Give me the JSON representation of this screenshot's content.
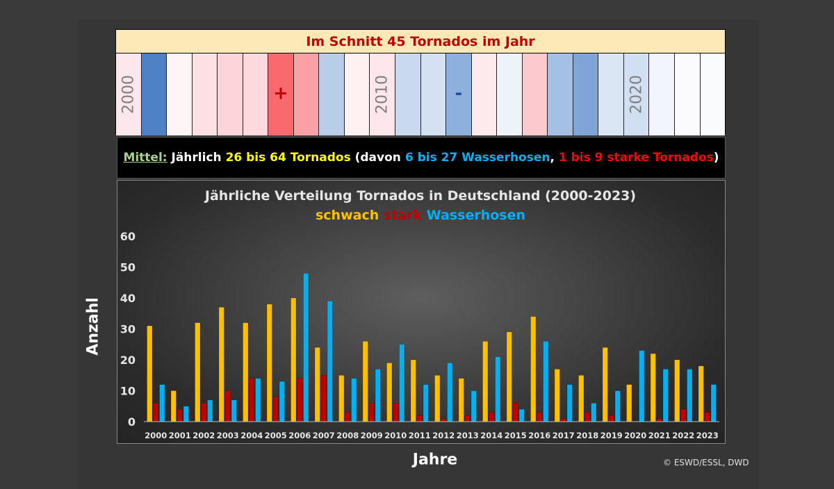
{
  "header": {
    "title": "Im Schnitt 45 Tornados im Jahr",
    "stripe_colors": [
      "#fce8ec",
      "#4f81c7",
      "#fff4f6",
      "#fde0e4",
      "#fcd4d9",
      "#fdd8dd",
      "#f96a6e",
      "#f9a1a5",
      "#b7cde8",
      "#fff0f2",
      "#fde7eb",
      "#c9d9ee",
      "#d4e1f2",
      "#8eb0dc",
      "#fdeaed",
      "#eef3fa",
      "#fcc9ce",
      "#a4c0e4",
      "#7fa4d6",
      "#dbe6f4",
      "#d0dff2",
      "#f2f5fb",
      "#fbfbfd",
      "#fafbfd"
    ],
    "stripe_years": [
      {
        "index": 0,
        "label": "2000"
      },
      {
        "index": 10,
        "label": "2010"
      },
      {
        "index": 20,
        "label": "2020"
      }
    ],
    "signs": [
      {
        "index": 6,
        "label": "+",
        "color": "#c00000"
      },
      {
        "index": 13,
        "label": "-",
        "color": "#2a4f9a"
      }
    ]
  },
  "mittel": {
    "label": "Mittel:",
    "p1": " Jährlich ",
    "range_total": "26 bis 64 Tornados",
    "p2": " (davon ",
    "range_water": "6 bis 27 Wasserhosen",
    "p3": ", ",
    "range_strong": "1 bis 9 starke Tornados",
    "p4": ")"
  },
  "chart_data": {
    "type": "bar",
    "title": "Jährliche Verteilung Tornados in Deutschland (2000-2023)",
    "xlabel": "Jahre",
    "ylabel": "Anzahl",
    "ylim": [
      0,
      60
    ],
    "yticks": [
      0,
      10,
      20,
      30,
      40,
      50,
      60
    ],
    "grid": false,
    "legend_position": "top-center",
    "categories": [
      "2000",
      "2001",
      "2002",
      "2003",
      "2004",
      "2005",
      "2006",
      "2007",
      "2008",
      "2009",
      "2010",
      "2011",
      "2012",
      "2013",
      "2014",
      "2015",
      "2016",
      "2017",
      "2018",
      "2019",
      "2020",
      "2021",
      "2022",
      "2023"
    ],
    "series": [
      {
        "name": "schwach",
        "color": "#ffc000",
        "values": [
          31,
          10,
          32,
          37,
          32,
          38,
          40,
          24,
          15,
          26,
          19,
          20,
          15,
          14,
          26,
          29,
          34,
          17,
          15,
          24,
          12,
          22,
          20,
          18
        ]
      },
      {
        "name": "stark",
        "color": "#c00000",
        "values": [
          6,
          4,
          6,
          10,
          14,
          8,
          14,
          15,
          3,
          6,
          6,
          2,
          1,
          2,
          3,
          6,
          3,
          1,
          3,
          2,
          0,
          1,
          4,
          3
        ]
      },
      {
        "name": "Wasserhosen",
        "color": "#00b0f0",
        "values": [
          12,
          5,
          7,
          7,
          14,
          13,
          48,
          39,
          14,
          17,
          25,
          12,
          19,
          10,
          21,
          4,
          26,
          12,
          6,
          10,
          23,
          17,
          17,
          12
        ]
      }
    ]
  },
  "colors": {
    "mittel_label": "#a9d18e",
    "total": "#ffff00",
    "water": "#00b0f0",
    "strong": "#ff0000"
  },
  "credit": "© ESWD/ESSL, DWD"
}
